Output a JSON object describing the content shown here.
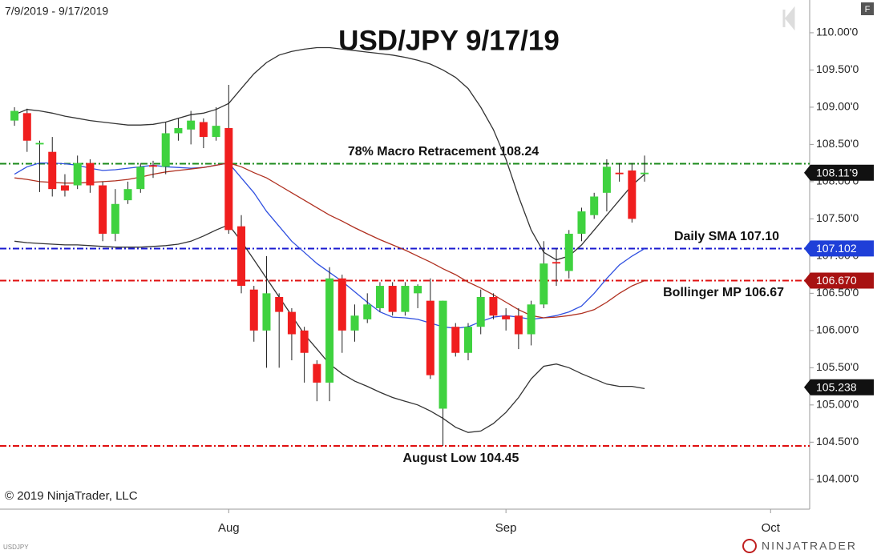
{
  "chart_data": {
    "type": "candlestick",
    "title": "USD/JPY 9/17/19",
    "date_range": "7/9/2019 - 9/17/2019",
    "copyright": "© 2019 NinjaTrader, LLC",
    "symbol": "USDJPY",
    "brand": "NINJATRADER",
    "button": "F",
    "up_color": "#3fd23f",
    "down_color": "#f01e1e",
    "open": [
      108.82,
      108.92,
      108.5,
      108.4,
      107.95,
      107.95,
      108.25,
      107.95,
      107.3,
      107.75,
      107.9,
      108.22,
      108.2,
      108.65,
      108.7,
      108.8,
      108.6,
      108.72,
      107.4,
      106.55,
      106.0,
      106.45,
      106.25,
      106.0,
      105.55,
      105.3,
      106.7,
      106.0,
      106.15,
      106.3,
      106.6,
      106.25,
      106.5,
      106.4,
      104.95,
      106.05,
      105.7,
      106.05,
      106.45,
      106.2,
      106.2,
      105.95,
      106.35,
      106.92,
      106.8,
      107.3,
      107.55,
      107.85,
      108.12,
      108.15,
      108.1
    ],
    "high": [
      109.0,
      108.98,
      108.55,
      108.6,
      108.1,
      108.35,
      108.3,
      108.0,
      107.9,
      108.0,
      108.25,
      108.28,
      108.8,
      108.85,
      108.95,
      108.85,
      109.0,
      109.3,
      107.55,
      106.6,
      107.0,
      106.5,
      106.3,
      106.05,
      105.6,
      106.85,
      106.75,
      106.35,
      106.5,
      106.65,
      106.65,
      106.65,
      106.62,
      106.7,
      106.4,
      106.1,
      106.1,
      106.55,
      106.5,
      106.3,
      106.3,
      106.4,
      107.2,
      107.1,
      107.35,
      107.65,
      107.85,
      108.3,
      108.25,
      108.25,
      108.35
    ],
    "low": [
      108.75,
      108.4,
      107.86,
      107.8,
      107.8,
      107.9,
      107.85,
      107.2,
      107.2,
      107.7,
      107.85,
      108.05,
      108.1,
      108.55,
      108.5,
      108.45,
      108.55,
      107.3,
      106.5,
      105.85,
      105.5,
      105.5,
      105.6,
      105.3,
      105.05,
      105.05,
      105.7,
      105.85,
      106.1,
      106.25,
      106.2,
      106.2,
      106.3,
      105.35,
      104.45,
      105.65,
      105.6,
      105.95,
      106.15,
      106.0,
      105.75,
      105.8,
      106.3,
      106.6,
      106.7,
      107.2,
      107.5,
      107.6,
      108.0,
      107.45,
      108.0
    ],
    "close": [
      108.95,
      108.55,
      108.52,
      107.9,
      107.88,
      108.25,
      107.95,
      107.3,
      107.7,
      107.9,
      108.2,
      108.2,
      108.65,
      108.72,
      108.82,
      108.6,
      108.75,
      107.35,
      106.6,
      106.0,
      106.5,
      106.25,
      105.95,
      105.7,
      105.3,
      106.7,
      106.0,
      106.2,
      106.35,
      106.6,
      106.25,
      106.6,
      106.6,
      105.4,
      106.4,
      105.7,
      106.05,
      106.45,
      106.2,
      106.15,
      105.95,
      106.35,
      106.9,
      106.9,
      107.3,
      107.6,
      107.8,
      108.2,
      108.1,
      107.5,
      108.12
    ],
    "overlays": [
      {
        "color": "#333333",
        "values": [
          108.9,
          108.97,
          108.95,
          108.92,
          108.88,
          108.85,
          108.82,
          108.8,
          108.78,
          108.76,
          108.76,
          108.77,
          108.8,
          108.85,
          108.9,
          108.92,
          108.97,
          109.05,
          109.25,
          109.45,
          109.6,
          109.7,
          109.75,
          109.78,
          109.8,
          109.8,
          109.78,
          109.76,
          109.74,
          109.72,
          109.7,
          109.67,
          109.63,
          109.58,
          109.5,
          109.4,
          109.25,
          109.0,
          108.7,
          108.3,
          107.8,
          107.35,
          107.05,
          106.95,
          107.0,
          107.15,
          107.35,
          107.55,
          107.75,
          107.95,
          108.1
        ]
      },
      {
        "color": "#333333",
        "values": [
          107.2,
          107.18,
          107.17,
          107.16,
          107.15,
          107.15,
          107.14,
          107.13,
          107.12,
          107.12,
          107.12,
          107.13,
          107.14,
          107.16,
          107.2,
          107.27,
          107.35,
          107.42,
          107.2,
          106.95,
          106.7,
          106.45,
          106.2,
          105.95,
          105.75,
          105.55,
          105.42,
          105.32,
          105.25,
          105.17,
          105.1,
          105.05,
          105.0,
          104.92,
          104.82,
          104.7,
          104.63,
          104.65,
          104.75,
          104.9,
          105.1,
          105.35,
          105.52,
          105.55,
          105.5,
          105.42,
          105.35,
          105.28,
          105.25,
          105.25,
          105.22
        ]
      },
      {
        "color": "#3050e0",
        "values": [
          108.1,
          108.2,
          108.25,
          108.25,
          108.24,
          108.22,
          108.18,
          108.15,
          108.16,
          108.18,
          108.2,
          108.22,
          108.2,
          108.19,
          108.18,
          108.19,
          108.22,
          108.25,
          108.05,
          107.85,
          107.6,
          107.4,
          107.2,
          107.05,
          106.9,
          106.78,
          106.66,
          106.52,
          106.38,
          106.25,
          106.18,
          106.17,
          106.15,
          106.1,
          106.05,
          106.03,
          106.05,
          106.12,
          106.18,
          106.2,
          106.18,
          106.15,
          106.17,
          106.2,
          106.25,
          106.33,
          106.5,
          106.7,
          106.88,
          107.0,
          107.1
        ]
      },
      {
        "color": "#b03020",
        "values": [
          108.05,
          108.03,
          108.0,
          107.99,
          107.98,
          107.98,
          107.99,
          108.0,
          108.01,
          108.03,
          108.06,
          108.1,
          108.13,
          108.15,
          108.17,
          108.19,
          108.22,
          108.25,
          108.2,
          108.12,
          108.05,
          107.95,
          107.85,
          107.75,
          107.65,
          107.55,
          107.47,
          107.38,
          107.3,
          107.22,
          107.15,
          107.08,
          107.0,
          106.92,
          106.83,
          106.75,
          106.65,
          106.57,
          106.48,
          106.38,
          106.28,
          106.2,
          106.17,
          106.18,
          106.2,
          106.23,
          106.28,
          106.38,
          106.5,
          106.6,
          106.67
        ]
      }
    ],
    "levels": [
      {
        "value": 108.24,
        "label": "78% Macro Retracement 108.24",
        "color": "#1a8a1a"
      },
      {
        "value": 107.1,
        "label": "Daily SMA 107.10",
        "color": "#1a1ad0"
      },
      {
        "value": 106.67,
        "label": "Bollinger MP 106.67",
        "color": "#e01010"
      },
      {
        "value": 104.45,
        "label": "August Low 104.45",
        "color": "#e01010"
      }
    ],
    "price_badges": [
      {
        "value": 108.119,
        "label": "108.11'9",
        "color": "#111111"
      },
      {
        "value": 107.102,
        "label": "107.102",
        "color": "#1f3fd8"
      },
      {
        "value": 106.67,
        "label": "106.670",
        "color": "#a81212"
      },
      {
        "value": 105.238,
        "label": "105.238",
        "color": "#111111"
      }
    ],
    "xlim": [
      -1.15,
      63.1
    ],
    "xticks": [
      {
        "value": 17,
        "label": "Aug"
      },
      {
        "value": 39,
        "label": "Sep"
      },
      {
        "value": 60,
        "label": "Oct"
      }
    ],
    "ylim": [
      103.6,
      110.44
    ],
    "yticks": [
      {
        "value": 104.0,
        "label": "104.00'0"
      },
      {
        "value": 104.5,
        "label": "104.50'0"
      },
      {
        "value": 105.0,
        "label": "105.00'0"
      },
      {
        "value": 105.5,
        "label": "105.50'0"
      },
      {
        "value": 106.0,
        "label": "106.00'0"
      },
      {
        "value": 106.5,
        "label": "106.50'0"
      },
      {
        "value": 107.0,
        "label": "107.00'0"
      },
      {
        "value": 107.5,
        "label": "107.50'0"
      },
      {
        "value": 108.0,
        "label": "108.00'0"
      },
      {
        "value": 108.5,
        "label": "108.50'0"
      },
      {
        "value": 109.0,
        "label": "109.00'0"
      },
      {
        "value": 109.5,
        "label": "109.50'0"
      },
      {
        "value": 110.0,
        "label": "110.00'0"
      }
    ]
  }
}
